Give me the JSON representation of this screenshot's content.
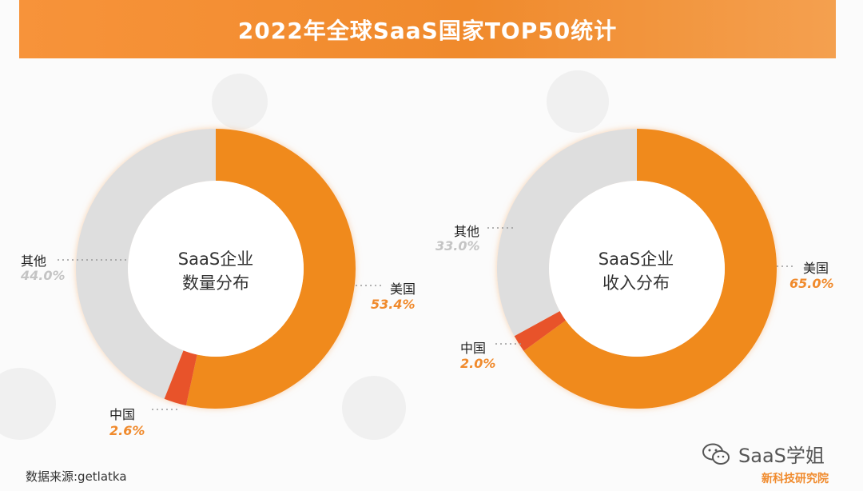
{
  "header": {
    "title": "2022年全球SaaS国家TOP50统计"
  },
  "colors": {
    "usa": "#f08a1c",
    "china": "#e8522b",
    "other": "#dedede",
    "accent": "#f08a2c"
  },
  "chart_data": [
    {
      "type": "pie",
      "center_label": [
        "SaaS企业",
        "数量分布"
      ],
      "slices": [
        {
          "label": "美国",
          "value": 53.4,
          "value_text": "53.4%"
        },
        {
          "label": "中国",
          "value": 2.6,
          "value_text": "2.6%"
        },
        {
          "label": "其他",
          "value": 44.0,
          "value_text": "44.0%"
        }
      ]
    },
    {
      "type": "pie",
      "center_label": [
        "SaaS企业",
        "收入分布"
      ],
      "slices": [
        {
          "label": "美国",
          "value": 65.0,
          "value_text": "65.0%"
        },
        {
          "label": "中国",
          "value": 2.0,
          "value_text": "2.0%"
        },
        {
          "label": "其他",
          "value": 33.0,
          "value_text": "33.0%"
        }
      ]
    }
  ],
  "footer": {
    "source": "数据来源:getlatka",
    "watermark": "SaaS学姐",
    "watermark_icon": "wechat-icon",
    "corner_logo": "新科技研究院"
  }
}
